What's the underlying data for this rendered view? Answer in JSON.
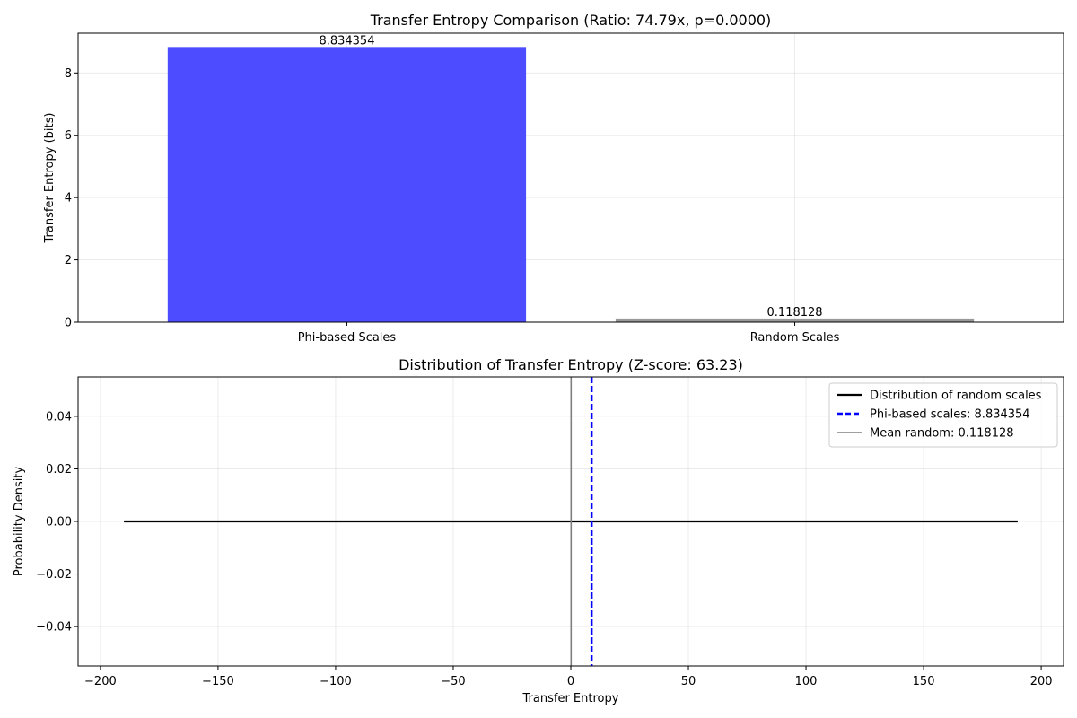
{
  "chart_data": [
    {
      "type": "bar",
      "title": "Transfer Entropy Comparison (Ratio: 74.79x, p=0.0000)",
      "xlabel": "",
      "ylabel": "Transfer Entropy (bits)",
      "categories": [
        "Phi-based Scales",
        "Random Scales"
      ],
      "values": [
        8.834354,
        0.118128
      ],
      "data_labels": [
        "8.834354",
        "0.118128"
      ],
      "colors": [
        "#4d4dff",
        "#999999"
      ],
      "ylim": [
        0,
        9.276
      ],
      "yticks": [
        0,
        2,
        4,
        6,
        8
      ],
      "ytick_labels": [
        "0",
        "2",
        "4",
        "6",
        "8"
      ],
      "grid": true
    },
    {
      "type": "line",
      "title": "Distribution of Transfer Entropy (Z-score: 63.23)",
      "xlabel": "Transfer Entropy",
      "ylabel": "Probability Density",
      "xlim": [
        -209.5,
        209.5
      ],
      "ylim": [
        -0.055,
        0.055
      ],
      "xticks": [
        -200,
        -150,
        -100,
        -50,
        0,
        50,
        100,
        150,
        200
      ],
      "xtick_labels": [
        "−200",
        "−150",
        "−100",
        "−50",
        "0",
        "50",
        "100",
        "150",
        "200"
      ],
      "yticks": [
        -0.04,
        -0.02,
        0.0,
        0.02,
        0.04
      ],
      "ytick_labels": [
        "−0.04",
        "−0.02",
        "0.00",
        "0.02",
        "0.04"
      ],
      "grid": true,
      "legend_position": "top-right",
      "series": [
        {
          "name": "Distribution of random scales",
          "x": [
            -190,
            190
          ],
          "y": [
            0,
            0
          ],
          "color": "#000000",
          "style": "solid"
        }
      ],
      "vlines": [
        {
          "name": "Phi-based scales: 8.834354",
          "x": 8.834354,
          "color": "#0000ff",
          "style": "dashed"
        },
        {
          "name": "Mean random: 0.118128",
          "x": 0.118128,
          "color": "#808080",
          "style": "solid"
        }
      ]
    }
  ]
}
